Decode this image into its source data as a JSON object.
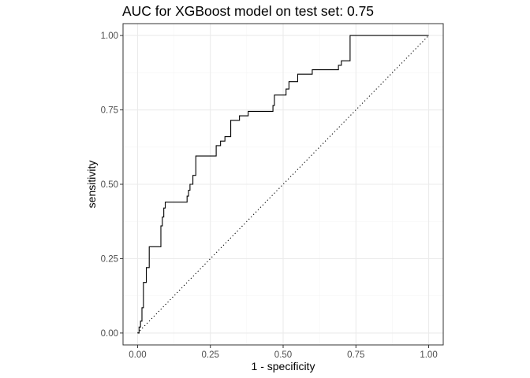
{
  "chart_data": {
    "type": "line",
    "title": "AUC for XGBoost model on test set: 0.75",
    "xlabel": "1 - specificity",
    "ylabel": "sensitivity",
    "xlim": [
      -0.05,
      1.05
    ],
    "ylim": [
      -0.04,
      1.04
    ],
    "x_ticks": [
      "0.00",
      "0.25",
      "0.50",
      "0.75",
      "1.00"
    ],
    "y_ticks": [
      "0.00",
      "0.25",
      "0.50",
      "0.75",
      "1.00"
    ],
    "grid": true,
    "series": [
      {
        "line_style": "solid",
        "step": true,
        "x": [
          0.0,
          0.005,
          0.01,
          0.015,
          0.02,
          0.03,
          0.04,
          0.05,
          0.08,
          0.085,
          0.09,
          0.095,
          0.16,
          0.17,
          0.175,
          0.18,
          0.19,
          0.2,
          0.27,
          0.285,
          0.3,
          0.32,
          0.35,
          0.38,
          0.46,
          0.465,
          0.47,
          0.5,
          0.51,
          0.52,
          0.55,
          0.6,
          0.67,
          0.69,
          0.7,
          0.73,
          1.0
        ],
        "y": [
          0.0,
          0.02,
          0.04,
          0.085,
          0.17,
          0.22,
          0.29,
          0.29,
          0.36,
          0.39,
          0.42,
          0.44,
          0.44,
          0.46,
          0.48,
          0.5,
          0.53,
          0.595,
          0.63,
          0.645,
          0.66,
          0.715,
          0.73,
          0.745,
          0.745,
          0.765,
          0.8,
          0.8,
          0.82,
          0.845,
          0.87,
          0.885,
          0.885,
          0.9,
          0.915,
          1.0,
          1.0
        ]
      },
      {
        "line_style": "dotted",
        "x": [
          0.0,
          1.0
        ],
        "y": [
          0.0,
          1.0
        ]
      }
    ],
    "colors": {
      "line": "#000000",
      "grid_major": "#ebebeb",
      "grid_minor": "#f5f5f5",
      "panel_border": "#333333",
      "tick_label": "#4d4d4d"
    }
  }
}
